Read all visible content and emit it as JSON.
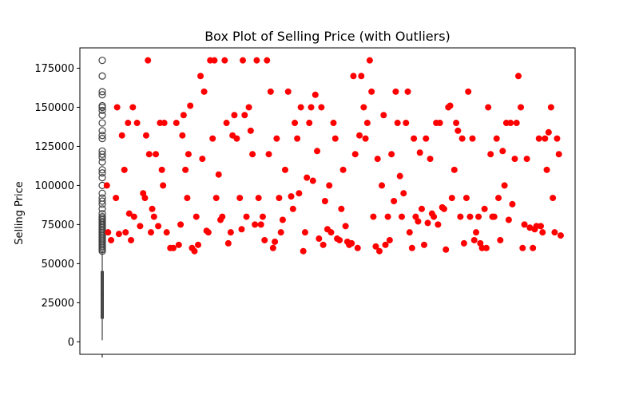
{
  "chart_data": {
    "type": "scatter",
    "title": "Box Plot of Selling Price (with Outliers)",
    "xlabel": "",
    "ylabel": "Selling Price",
    "ylim": [
      -8000,
      188000
    ],
    "yticks": [
      0,
      25000,
      50000,
      75000,
      100000,
      125000,
      150000,
      175000
    ],
    "ytick_labels": [
      "0",
      "25000",
      "50000",
      "75000",
      "100000",
      "125000",
      "150000",
      "175000"
    ],
    "grid": false,
    "legend": "none",
    "colors": {
      "outlier_point": "#ff0000",
      "box_outline": "#3f3f3f",
      "axes": "#000000"
    },
    "box": {
      "whisker_low": 1000,
      "q1": 15000,
      "median": 30000,
      "q3": 45000,
      "whisker_high": 58000
    },
    "box_outliers": [
      58000,
      59000,
      60000,
      61000,
      62000,
      63000,
      64000,
      65000,
      66000,
      67000,
      68000,
      69000,
      70000,
      71000,
      72000,
      73000,
      74000,
      75000,
      76000,
      77000,
      78000,
      79000,
      80000,
      82000,
      85000,
      88000,
      90000,
      92000,
      95000,
      100000,
      105000,
      108000,
      110000,
      115000,
      118000,
      120000,
      122000,
      130000,
      132000,
      135000,
      140000,
      145000,
      148000,
      150000,
      151000,
      158000,
      160000,
      170000,
      180000
    ],
    "outlier_points": [
      [
        0.5,
        100000
      ],
      [
        0.7,
        70000
      ],
      [
        1.2,
        65000
      ],
      [
        2.0,
        92000
      ],
      [
        2.2,
        150000
      ],
      [
        2.5,
        69000
      ],
      [
        3.0,
        132000
      ],
      [
        3.4,
        110000
      ],
      [
        3.6,
        70000
      ],
      [
        4.0,
        140000
      ],
      [
        4.2,
        82000
      ],
      [
        4.5,
        65000
      ],
      [
        4.8,
        150000
      ],
      [
        5.0,
        80000
      ],
      [
        5.5,
        140000
      ],
      [
        6.0,
        74000
      ],
      [
        6.5,
        95000
      ],
      [
        6.8,
        92000
      ],
      [
        7.0,
        132000
      ],
      [
        7.3,
        180000
      ],
      [
        7.5,
        120000
      ],
      [
        7.8,
        70000
      ],
      [
        8.0,
        85000
      ],
      [
        8.3,
        80000
      ],
      [
        8.6,
        120000
      ],
      [
        9.0,
        74000
      ],
      [
        9.3,
        140000
      ],
      [
        9.6,
        110000
      ],
      [
        9.8,
        100000
      ],
      [
        10.0,
        140000
      ],
      [
        10.4,
        70000
      ],
      [
        11.0,
        60000
      ],
      [
        11.5,
        60000
      ],
      [
        12.0,
        140000
      ],
      [
        12.4,
        62000
      ],
      [
        12.7,
        75000
      ],
      [
        13.0,
        132000
      ],
      [
        13.2,
        145000
      ],
      [
        13.5,
        110000
      ],
      [
        13.8,
        92000
      ],
      [
        14.0,
        120000
      ],
      [
        14.3,
        151000
      ],
      [
        14.6,
        60000
      ],
      [
        15.0,
        58000
      ],
      [
        15.3,
        80000
      ],
      [
        15.6,
        62000
      ],
      [
        16.0,
        170000
      ],
      [
        16.3,
        117000
      ],
      [
        16.6,
        160000
      ],
      [
        17.0,
        71000
      ],
      [
        17.3,
        70000
      ],
      [
        17.6,
        180000
      ],
      [
        18.0,
        130000
      ],
      [
        18.3,
        180000
      ],
      [
        18.6,
        92000
      ],
      [
        19.0,
        107000
      ],
      [
        19.3,
        78000
      ],
      [
        19.6,
        80000
      ],
      [
        20.0,
        180000
      ],
      [
        20.3,
        140000
      ],
      [
        20.6,
        63000
      ],
      [
        21.0,
        70000
      ],
      [
        21.3,
        132000
      ],
      [
        21.6,
        145000
      ],
      [
        22.0,
        130000
      ],
      [
        22.5,
        92000
      ],
      [
        22.8,
        72000
      ],
      [
        23.0,
        180000
      ],
      [
        23.3,
        145000
      ],
      [
        23.6,
        80000
      ],
      [
        24.0,
        150000
      ],
      [
        24.3,
        135000
      ],
      [
        24.6,
        120000
      ],
      [
        25.0,
        75000
      ],
      [
        25.3,
        180000
      ],
      [
        25.6,
        92000
      ],
      [
        26.0,
        75000
      ],
      [
        26.3,
        80000
      ],
      [
        26.6,
        65000
      ],
      [
        27.0,
        180000
      ],
      [
        27.3,
        120000
      ],
      [
        27.6,
        160000
      ],
      [
        28.0,
        60000
      ],
      [
        28.3,
        64000
      ],
      [
        28.6,
        130000
      ],
      [
        29.0,
        92000
      ],
      [
        29.3,
        70000
      ],
      [
        29.6,
        78000
      ],
      [
        30.0,
        110000
      ],
      [
        30.5,
        160000
      ],
      [
        31.0,
        93000
      ],
      [
        31.3,
        85000
      ],
      [
        31.6,
        140000
      ],
      [
        32.0,
        130000
      ],
      [
        32.3,
        95000
      ],
      [
        32.6,
        150000
      ],
      [
        33.0,
        58000
      ],
      [
        33.3,
        70000
      ],
      [
        33.6,
        105000
      ],
      [
        34.0,
        140000
      ],
      [
        34.3,
        150000
      ],
      [
        34.6,
        103000
      ],
      [
        35.0,
        158000
      ],
      [
        35.3,
        122000
      ],
      [
        35.6,
        66000
      ],
      [
        36.0,
        150000
      ],
      [
        36.3,
        62000
      ],
      [
        36.6,
        90000
      ],
      [
        37.0,
        72000
      ],
      [
        37.3,
        100000
      ],
      [
        37.6,
        70000
      ],
      [
        38.0,
        140000
      ],
      [
        38.3,
        130000
      ],
      [
        38.6,
        66000
      ],
      [
        39.0,
        65000
      ],
      [
        39.3,
        85000
      ],
      [
        39.6,
        110000
      ],
      [
        40.0,
        74000
      ],
      [
        40.3,
        64000
      ],
      [
        40.6,
        62000
      ],
      [
        41.0,
        63000
      ],
      [
        41.3,
        170000
      ],
      [
        41.6,
        120000
      ],
      [
        42.0,
        60000
      ],
      [
        42.3,
        132000
      ],
      [
        42.6,
        170000
      ],
      [
        43.0,
        150000
      ],
      [
        43.3,
        130000
      ],
      [
        43.6,
        140000
      ],
      [
        44.0,
        180000
      ],
      [
        44.3,
        160000
      ],
      [
        44.6,
        80000
      ],
      [
        45.0,
        61000
      ],
      [
        45.3,
        117000
      ],
      [
        45.6,
        58000
      ],
      [
        46.0,
        100000
      ],
      [
        46.3,
        145000
      ],
      [
        46.6,
        62000
      ],
      [
        47.0,
        80000
      ],
      [
        47.3,
        65000
      ],
      [
        47.6,
        120000
      ],
      [
        48.0,
        90000
      ],
      [
        48.3,
        160000
      ],
      [
        48.6,
        140000
      ],
      [
        49.0,
        106000
      ],
      [
        49.3,
        80000
      ],
      [
        49.6,
        95000
      ],
      [
        50.0,
        140000
      ],
      [
        50.3,
        160000
      ],
      [
        50.6,
        70000
      ],
      [
        51.0,
        60000
      ],
      [
        51.3,
        130000
      ],
      [
        51.6,
        80000
      ],
      [
        52.0,
        77000
      ],
      [
        52.3,
        121000
      ],
      [
        52.6,
        85000
      ],
      [
        53.0,
        62000
      ],
      [
        53.3,
        130000
      ],
      [
        53.6,
        76000
      ],
      [
        54.0,
        117000
      ],
      [
        54.3,
        82000
      ],
      [
        54.6,
        80000
      ],
      [
        55.0,
        140000
      ],
      [
        55.3,
        75000
      ],
      [
        55.6,
        140000
      ],
      [
        56.0,
        86000
      ],
      [
        56.3,
        85000
      ],
      [
        56.6,
        59000
      ],
      [
        57.0,
        150000
      ],
      [
        57.3,
        151000
      ],
      [
        57.6,
        92000
      ],
      [
        58.0,
        110000
      ],
      [
        58.3,
        140000
      ],
      [
        58.6,
        135000
      ],
      [
        59.0,
        80000
      ],
      [
        59.3,
        130000
      ],
      [
        59.6,
        63000
      ],
      [
        60.0,
        92000
      ],
      [
        60.3,
        160000
      ],
      [
        60.6,
        80000
      ],
      [
        61.0,
        130000
      ],
      [
        61.3,
        65000
      ],
      [
        61.6,
        70000
      ],
      [
        62.0,
        80000
      ],
      [
        62.3,
        63000
      ],
      [
        62.6,
        60000
      ],
      [
        63.0,
        85000
      ],
      [
        63.3,
        60000
      ],
      [
        63.6,
        150000
      ],
      [
        64.0,
        120000
      ],
      [
        64.3,
        80000
      ],
      [
        64.6,
        80000
      ],
      [
        65.0,
        130000
      ],
      [
        65.3,
        92000
      ],
      [
        65.6,
        65000
      ],
      [
        66.0,
        122000
      ],
      [
        66.3,
        100000
      ],
      [
        66.6,
        140000
      ],
      [
        67.0,
        78000
      ],
      [
        67.3,
        140000
      ],
      [
        67.6,
        88000
      ],
      [
        68.0,
        117000
      ],
      [
        68.3,
        140000
      ],
      [
        68.6,
        170000
      ],
      [
        69.0,
        150000
      ],
      [
        69.3,
        60000
      ],
      [
        69.6,
        75000
      ],
      [
        70.0,
        117000
      ],
      [
        70.5,
        73000
      ],
      [
        71.0,
        60000
      ],
      [
        71.3,
        72000
      ],
      [
        71.6,
        74000
      ],
      [
        72.0,
        130000
      ],
      [
        72.3,
        74000
      ],
      [
        72.6,
        70000
      ],
      [
        73.0,
        130000
      ],
      [
        73.3,
        110000
      ],
      [
        73.6,
        134000
      ],
      [
        74.0,
        150000
      ],
      [
        74.3,
        92000
      ],
      [
        74.6,
        70000
      ],
      [
        75.0,
        130000
      ],
      [
        75.3,
        120000
      ],
      [
        75.6,
        68000
      ]
    ]
  }
}
